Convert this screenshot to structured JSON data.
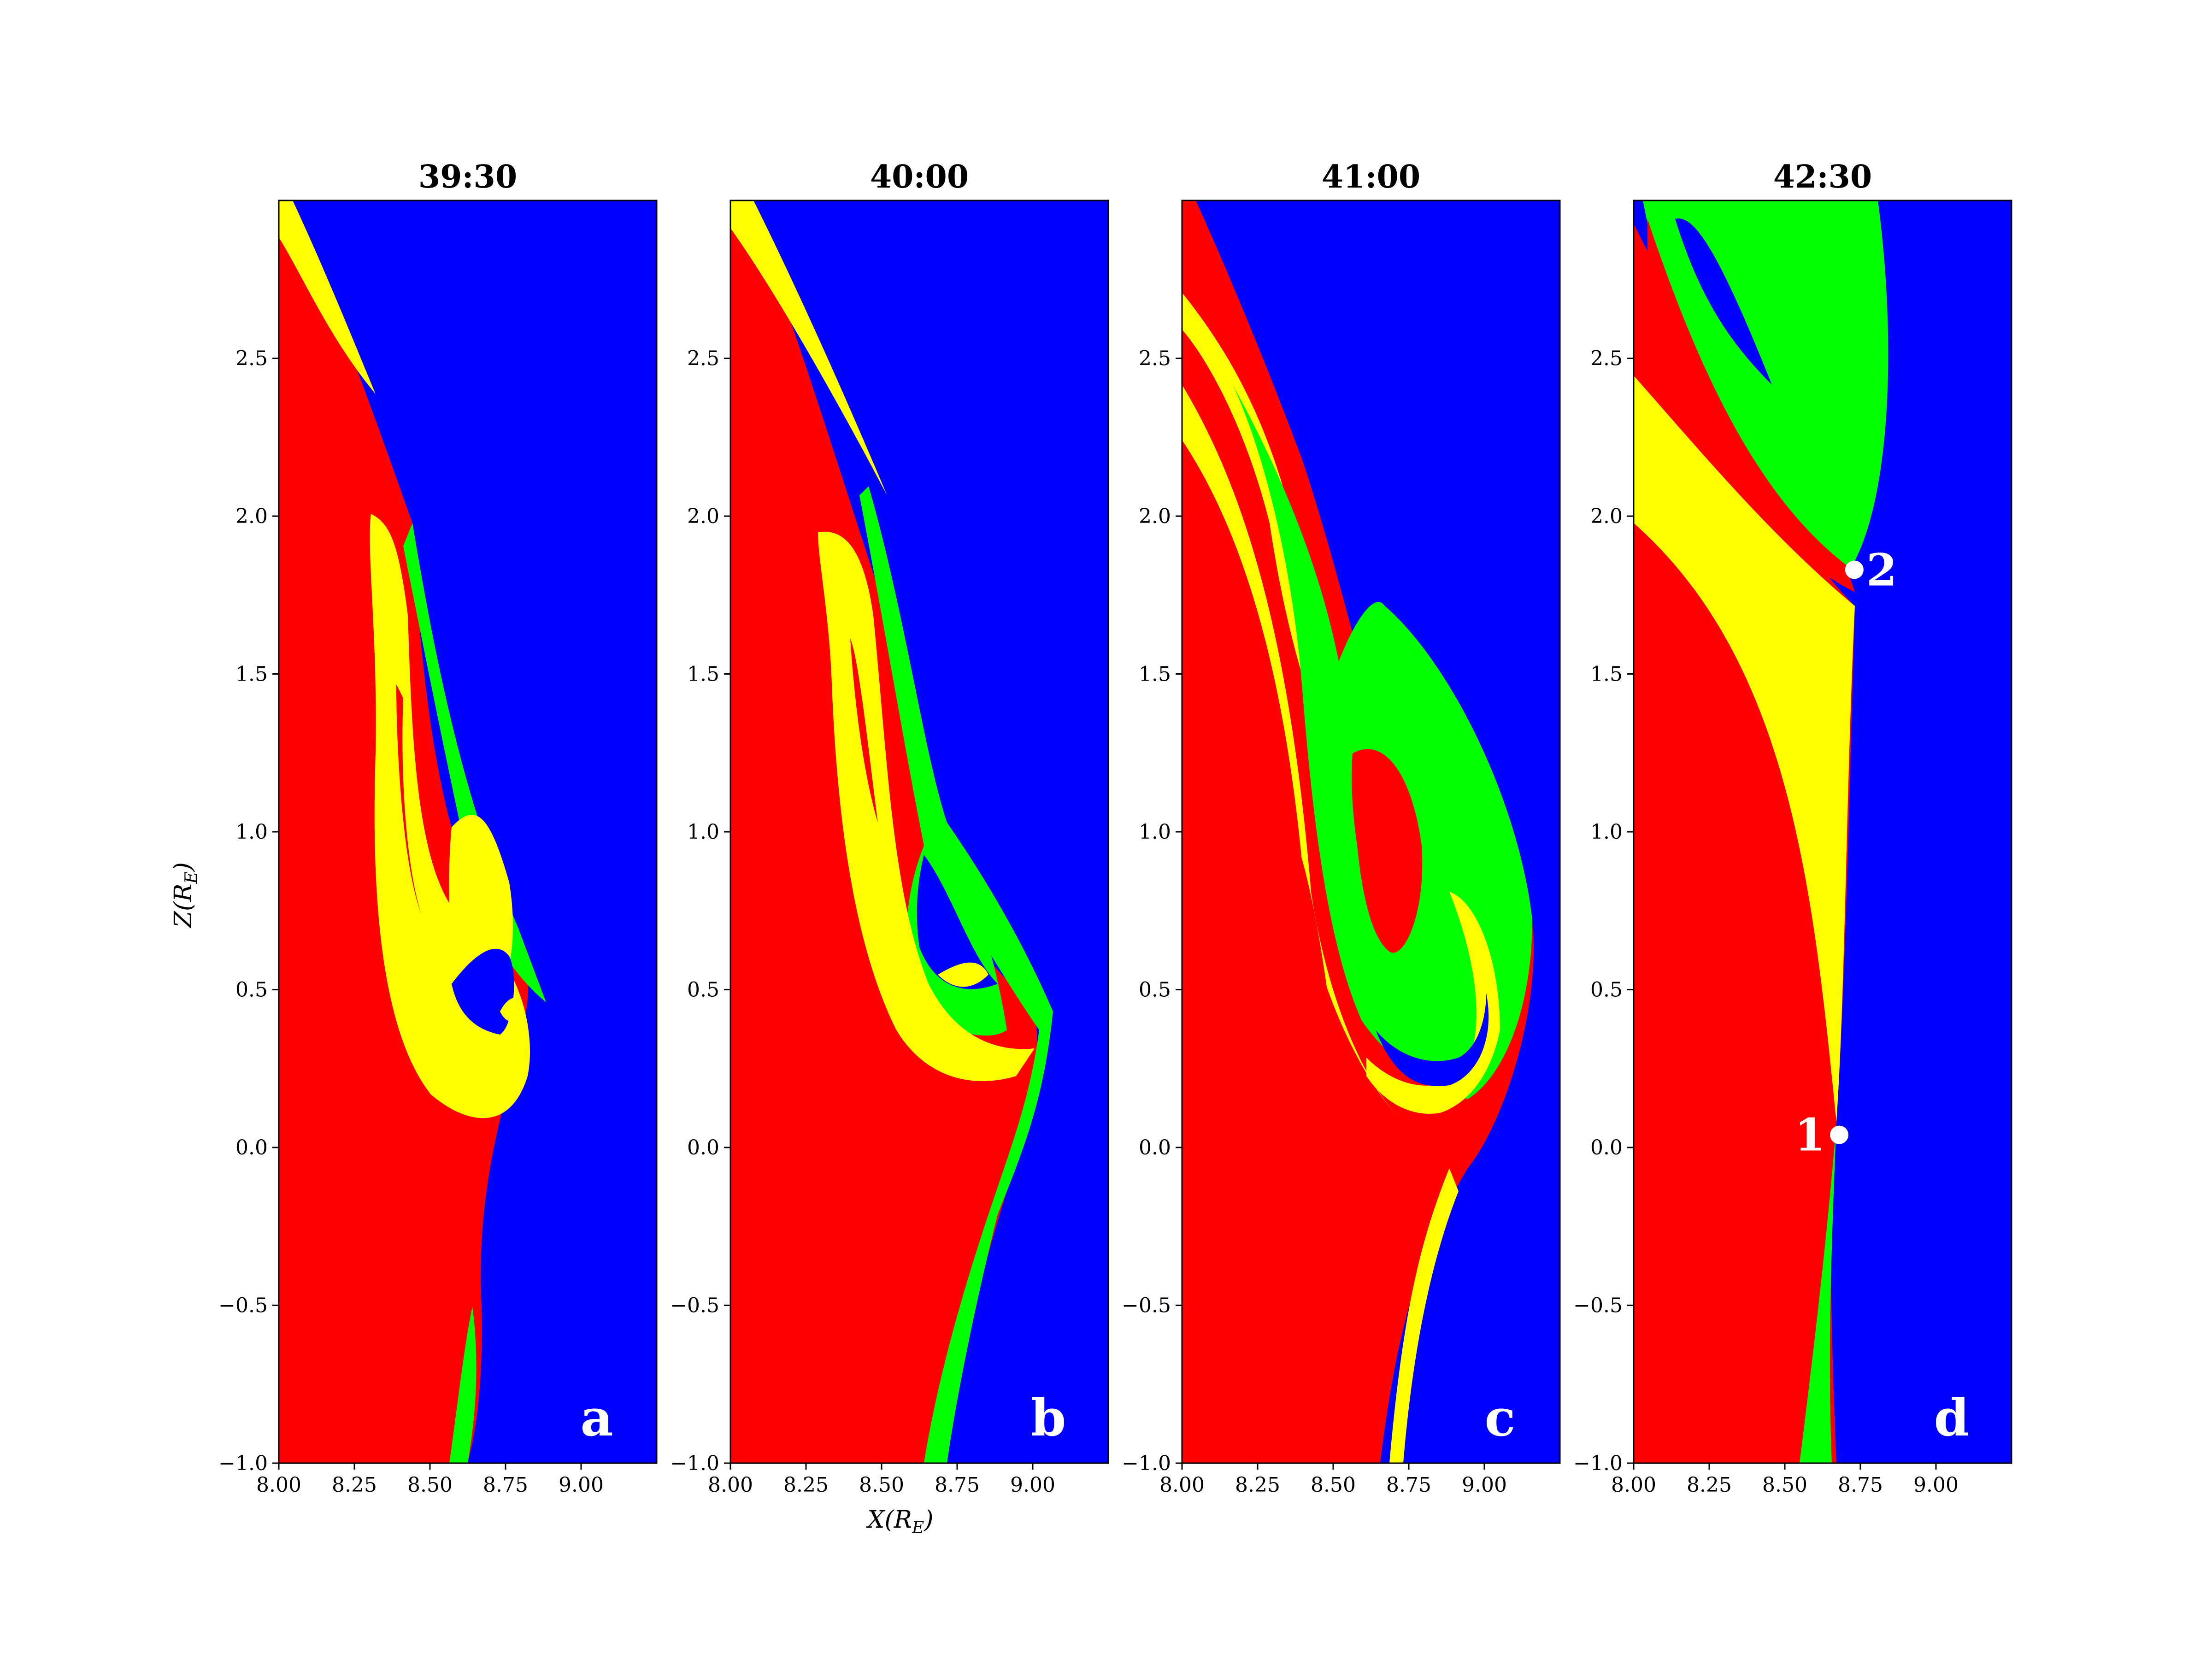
{
  "colors": {
    "blue": "#0000ff",
    "red": "#ff0000",
    "yellow": "#ffff00",
    "green": "#00ff00",
    "marker": "#ffffff"
  },
  "figure": {
    "xlabel": "X(R_E)",
    "ylabel": "Z(R_E)"
  },
  "chart_data": [
    {
      "type": "heatmap",
      "title": "39:30",
      "panel_label": "a",
      "xlim": [
        8.0,
        9.25
      ],
      "ylim": [
        -1.0,
        3.0
      ],
      "xticks": [
        "8.00",
        "8.25",
        "8.50",
        "8.75",
        "9.00"
      ],
      "yticks": [
        "−1.0",
        "−0.5",
        "0.0",
        "0.5",
        "1.0",
        "1.5",
        "2.0",
        "2.5"
      ],
      "ylabel": "Z(R_E)",
      "xlabel": ""
    },
    {
      "type": "heatmap",
      "title": "40:00",
      "panel_label": "b",
      "xlim": [
        8.0,
        9.25
      ],
      "ylim": [
        -1.0,
        3.0
      ],
      "xticks": [
        "8.00",
        "8.25",
        "8.50",
        "8.75",
        "9.00"
      ],
      "yticks": [
        "−1.0",
        "−0.5",
        "0.0",
        "0.5",
        "1.0",
        "1.5",
        "2.0",
        "2.5"
      ],
      "ylabel": "",
      "xlabel": "X(R_E)"
    },
    {
      "type": "heatmap",
      "title": "41:00",
      "panel_label": "c",
      "xlim": [
        8.0,
        9.25
      ],
      "ylim": [
        -1.0,
        3.0
      ],
      "xticks": [
        "8.00",
        "8.25",
        "8.50",
        "8.75",
        "9.00"
      ],
      "yticks": [
        "−1.0",
        "−0.5",
        "0.0",
        "0.5",
        "1.0",
        "1.5",
        "2.0",
        "2.5"
      ],
      "ylabel": "",
      "xlabel": ""
    },
    {
      "type": "heatmap",
      "title": "42:30",
      "panel_label": "d",
      "xlim": [
        8.0,
        9.25
      ],
      "ylim": [
        -1.0,
        3.0
      ],
      "xticks": [
        "8.00",
        "8.25",
        "8.50",
        "8.75",
        "9.00"
      ],
      "yticks": [
        "−1.0",
        "−0.5",
        "0.0",
        "0.5",
        "1.0",
        "1.5",
        "2.0",
        "2.5"
      ],
      "ylabel": "",
      "xlabel": "",
      "markers": [
        {
          "label": "1",
          "x": 8.68,
          "y": 0.04
        },
        {
          "label": "2",
          "x": 8.73,
          "y": 1.83
        }
      ]
    }
  ]
}
